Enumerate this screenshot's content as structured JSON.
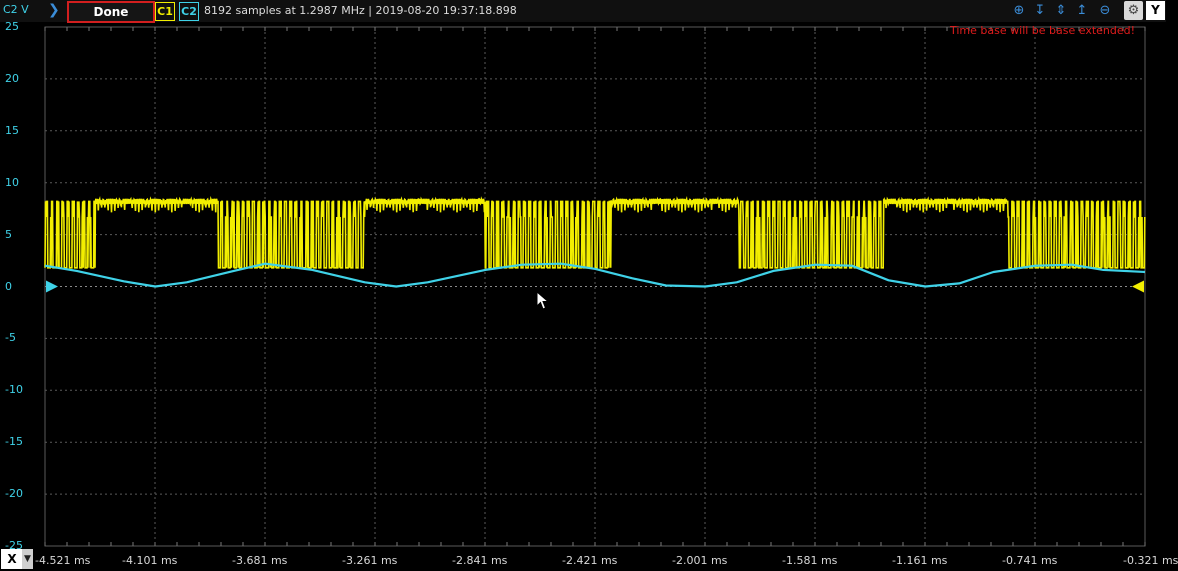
{
  "toolbar": {
    "unit_label": "C2 V",
    "run_state": "Done",
    "channel1": "C1",
    "channel2": "C2",
    "status": "8192 samples at 1.2987 MHz | 2019-08-20 19:37:18.898",
    "y_button": "Y",
    "x_button": "X"
  },
  "warning": "Time base will be base extended!",
  "chart_data": {
    "type": "line",
    "xlabel": "",
    "ylabel": "C2 V",
    "x_unit": "ms",
    "xlim": [
      -4.521,
      -0.321
    ],
    "ylim": [
      -25,
      25
    ],
    "y_ticks": [
      25,
      20,
      15,
      10,
      5,
      0,
      -5,
      -10,
      -15,
      -20,
      -25
    ],
    "x_tick_labels": [
      "-4.521 ms",
      "-4.101 ms",
      "-3.681 ms",
      "-3.261 ms",
      "-2.841 ms",
      "-2.421 ms",
      "-2.001 ms",
      "-1.581 ms",
      "-1.161 ms",
      "-0.741 ms",
      "-0.321 ms"
    ],
    "grid": true,
    "colors": {
      "c1": "#f2ee00",
      "c2": "#3fd2e8",
      "grid": "#5a5a5a",
      "warning": "#e01c1c",
      "done_border": "#d21f1f"
    },
    "series": [
      {
        "name": "C1",
        "pattern": "burst",
        "high_level": 8.2,
        "low_level": 1.8,
        "burst_windows_ms": [
          [
            -4.521,
            -4.33
          ],
          [
            -3.86,
            -3.3
          ],
          [
            -2.84,
            -2.36
          ],
          [
            -1.87,
            -1.32
          ],
          [
            -0.85,
            -0.321
          ]
        ]
      },
      {
        "name": "C2",
        "pattern": "arch",
        "x": [
          -4.521,
          -4.4,
          -4.22,
          -4.1,
          -3.98,
          -3.8,
          -3.68,
          -3.5,
          -3.3,
          -3.18,
          -3.06,
          -2.84,
          -2.7,
          -2.55,
          -2.42,
          -2.28,
          -2.15,
          -2.0,
          -1.88,
          -1.74,
          -1.58,
          -1.44,
          -1.3,
          -1.16,
          -1.03,
          -0.9,
          -0.74,
          -0.6,
          -0.48,
          -0.321
        ],
        "y": [
          2.0,
          1.5,
          0.5,
          0.0,
          0.4,
          1.5,
          2.2,
          1.6,
          0.4,
          0.0,
          0.4,
          1.6,
          2.1,
          2.2,
          1.7,
          0.8,
          0.1,
          0.0,
          0.4,
          1.5,
          2.1,
          2.0,
          0.6,
          0.0,
          0.3,
          1.4,
          2.0,
          2.1,
          1.6,
          1.4
        ]
      }
    ]
  }
}
